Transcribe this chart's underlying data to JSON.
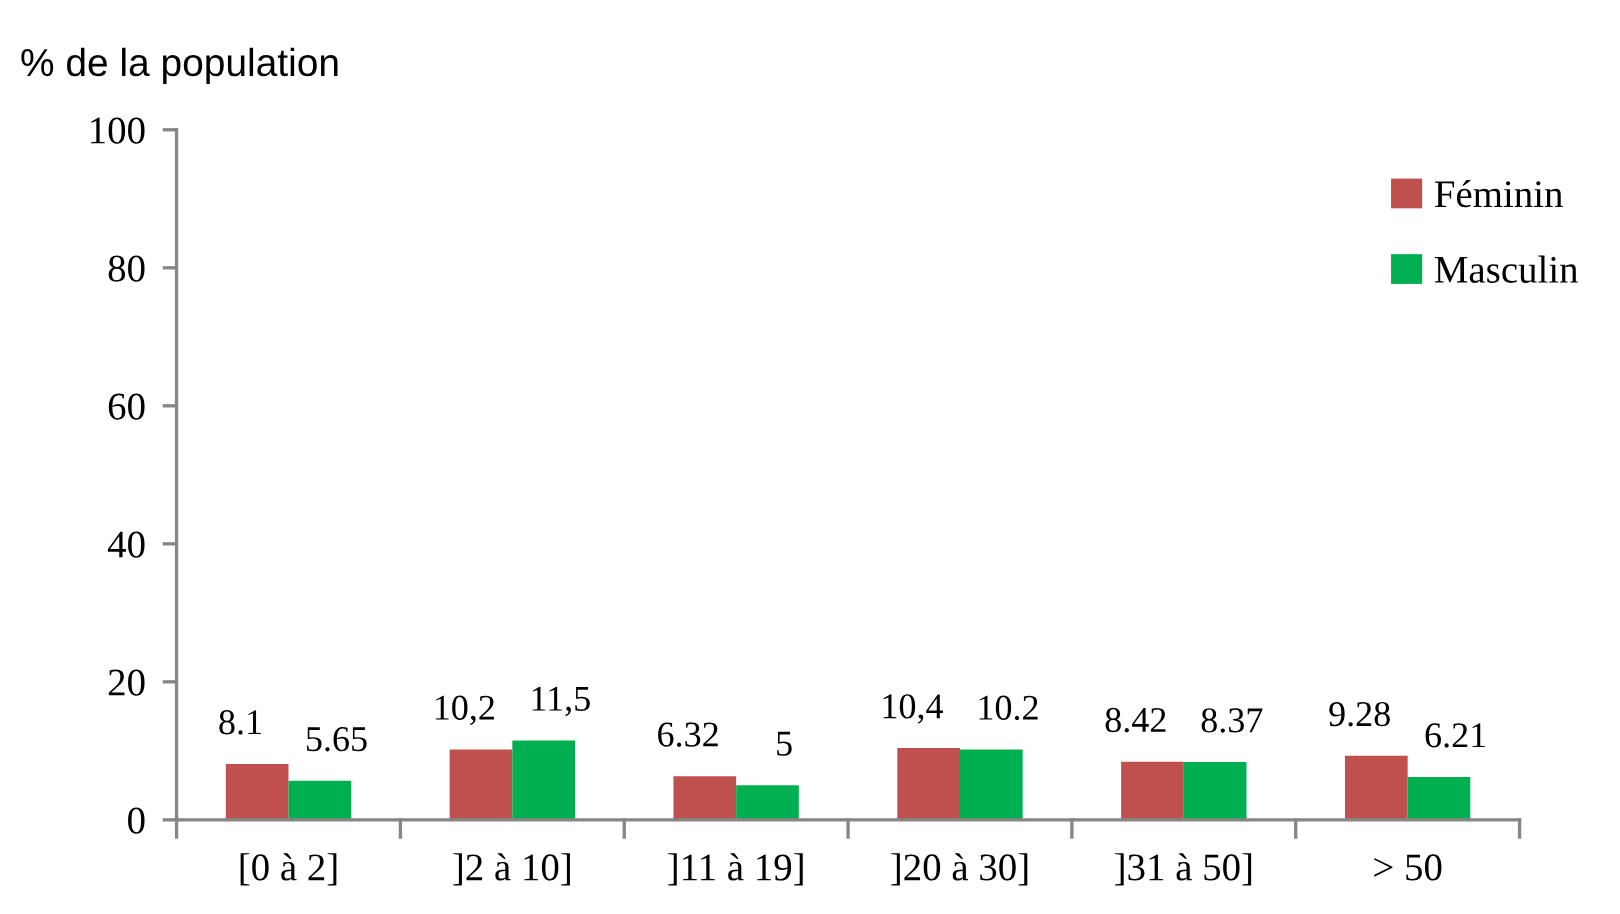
{
  "chart_data": {
    "type": "bar",
    "ylabel": "% de la population",
    "categories": [
      "[0 à 2]",
      "]2 à 10]",
      "]11 à 19]",
      "]20 à 30]",
      "]31 à 50]",
      "> 50"
    ],
    "series": [
      {
        "name": "Féminin",
        "color": "#c0504d",
        "values": [
          8.1,
          10.2,
          6.32,
          10.4,
          8.42,
          9.28
        ],
        "value_labels": [
          "8.1",
          "10,2",
          "6.32",
          "10,4",
          "8.42",
          "9.28"
        ]
      },
      {
        "name": "Masculin",
        "color": "#00b050",
        "values": [
          5.65,
          11.5,
          5,
          10.2,
          8.37,
          6.21
        ],
        "value_labels": [
          "5.65",
          "11,5",
          "5",
          "10.2",
          "8.37",
          "6.21"
        ]
      }
    ],
    "ylim": [
      0,
      100
    ],
    "yticks": [
      0,
      20,
      40,
      60,
      80,
      100
    ],
    "grid": false,
    "legend": "top right"
  }
}
